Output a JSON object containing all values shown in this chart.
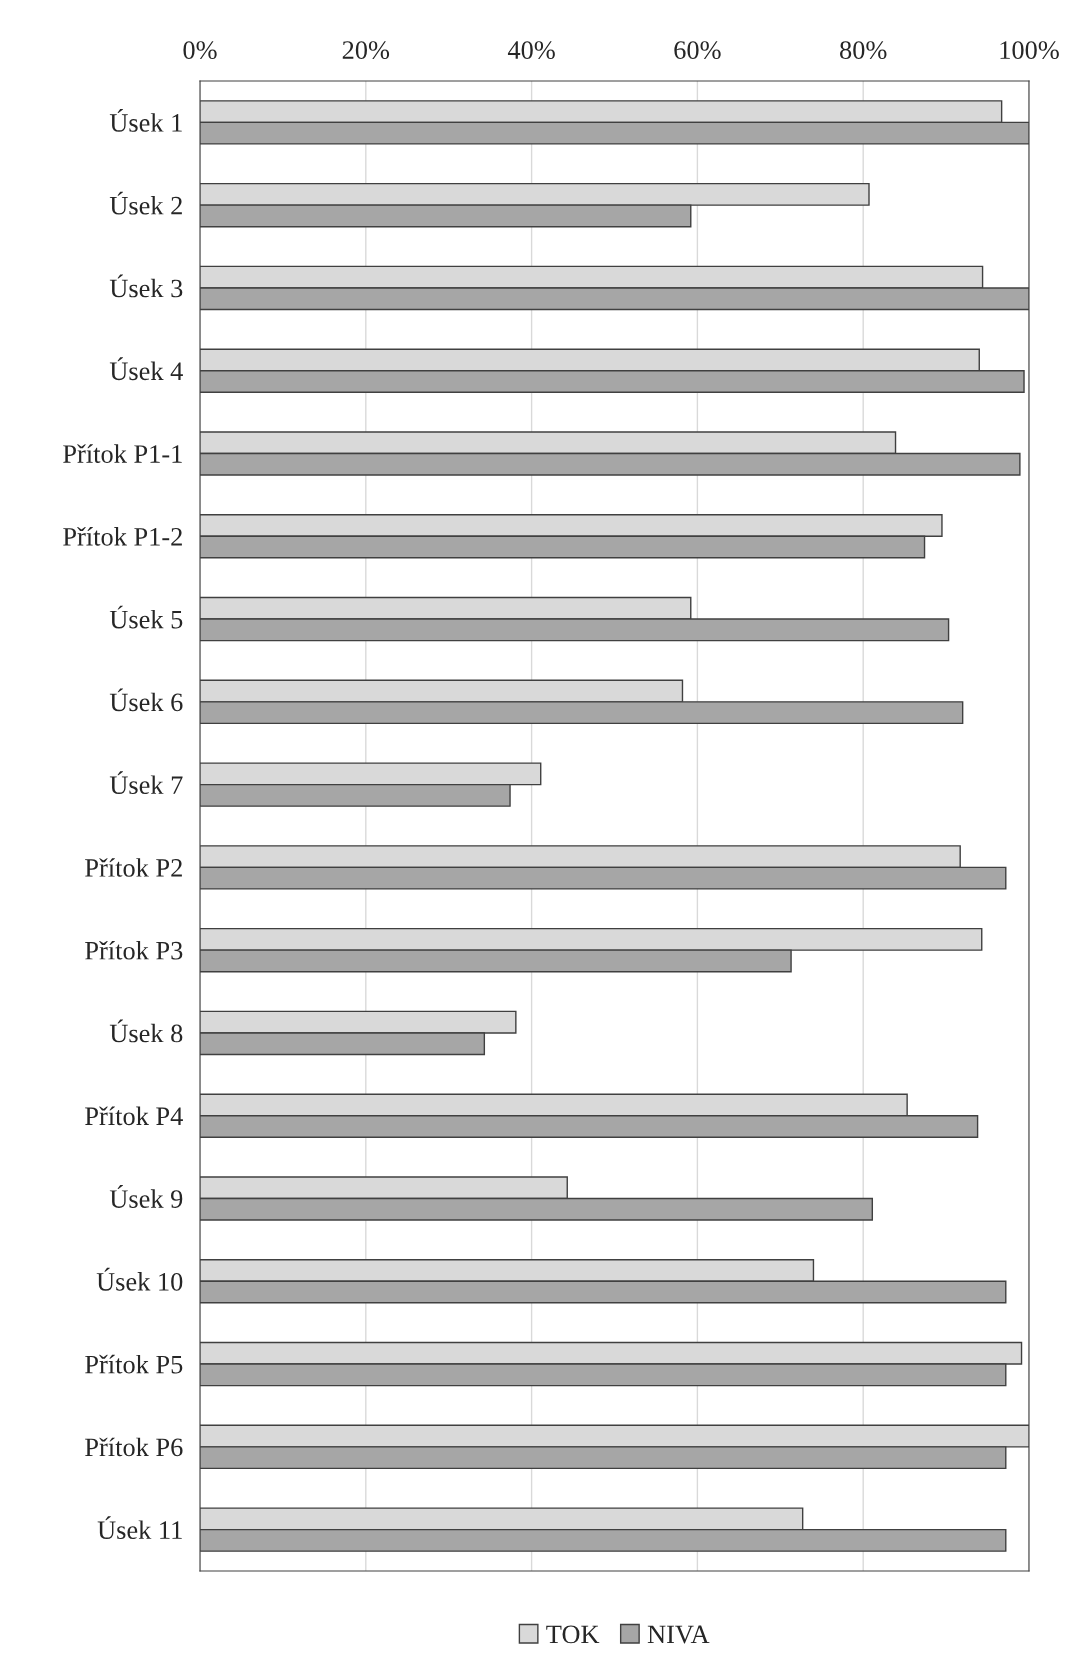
{
  "chart_data": {
    "type": "bar",
    "orientation": "horizontal",
    "categories": [
      "Úsek 1",
      "Úsek 2",
      "Úsek 3",
      "Úsek 4",
      "Přítok P1-1",
      "Přítok P1-2",
      "Úsek 5",
      "Úsek 6",
      "Úsek 7",
      "Přítok P2",
      "Přítok P3",
      "Úsek 8",
      "Přítok P4",
      "Úsek 9",
      "Úsek 10",
      "Přítok P5",
      "Přítok P6",
      "Úsek 11"
    ],
    "series": [
      {
        "name": "TOK",
        "color": "#d9d9d9",
        "values": [
          96.7,
          80.7,
          94.4,
          94.0,
          83.9,
          89.5,
          59.2,
          58.2,
          41.1,
          91.7,
          94.3,
          38.1,
          85.3,
          44.3,
          74.0,
          99.1,
          100,
          72.7
        ]
      },
      {
        "name": "NIVA",
        "color": "#a6a6a6",
        "values": [
          100,
          59.2,
          100,
          99.4,
          98.9,
          87.4,
          90.3,
          92.0,
          37.4,
          97.2,
          71.3,
          34.3,
          93.8,
          81.1,
          97.2,
          97.2,
          97.2,
          97.2
        ]
      }
    ],
    "xlim": [
      0,
      100
    ],
    "xticks": [
      {
        "value": 0,
        "label": "0%"
      },
      {
        "value": 20,
        "label": "20%"
      },
      {
        "value": 40,
        "label": "40%"
      },
      {
        "value": 60,
        "label": "60%"
      },
      {
        "value": 80,
        "label": "80%"
      },
      {
        "value": 100,
        "label": "100%"
      }
    ],
    "grid": "x",
    "legend": "bottom"
  }
}
